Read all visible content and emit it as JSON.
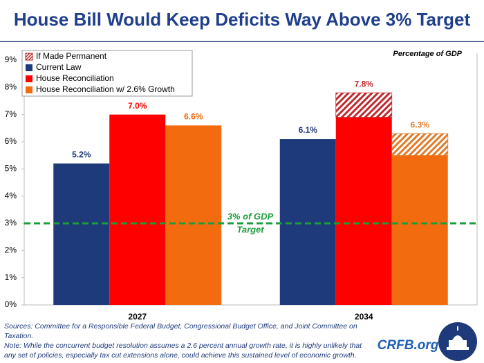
{
  "chart_data": {
    "type": "bar",
    "title": "House Bill Would Keep Deficits Way Above 3% Target",
    "unit_note": "Percentage of GDP",
    "categories": [
      "2027",
      "2034"
    ],
    "permanent_name": "If Made Permanent",
    "series": [
      {
        "name": "Current Law",
        "color": "#1f3a7a",
        "values": [
          5.2,
          6.1
        ],
        "value_labels": [
          "5.2%",
          "6.1%"
        ]
      },
      {
        "name": "House Reconciliation",
        "color": "#ff0000",
        "values": [
          7.0,
          6.9
        ],
        "value_labels": [
          "7.0%",
          null
        ],
        "permanent": [
          null,
          7.8
        ],
        "permanent_labels": [
          null,
          "7.8%"
        ],
        "permanent_color": "#c0282d"
      },
      {
        "name": "House Reconciliation w/ 2.6% Growth",
        "color": "#f26b0f",
        "values": [
          6.6,
          5.5
        ],
        "value_labels": [
          "6.6%",
          null
        ],
        "permanent": [
          null,
          6.3
        ],
        "permanent_labels": [
          null,
          "6.3%"
        ],
        "permanent_color": "#e07b2a"
      }
    ],
    "ylim": [
      0,
      9
    ],
    "yticks": [
      {
        "value": 0,
        "label": "0%"
      },
      {
        "value": 1,
        "label": "1%"
      },
      {
        "value": 2,
        "label": "2%"
      },
      {
        "value": 3,
        "label": "3%"
      },
      {
        "value": 4,
        "label": "4%"
      },
      {
        "value": 5,
        "label": "5%"
      },
      {
        "value": 6,
        "label": "6%"
      },
      {
        "value": 7,
        "label": "7%"
      },
      {
        "value": 8,
        "label": "8%"
      },
      {
        "value": 9,
        "label": "9%"
      }
    ],
    "grid": false,
    "legend_position": "top-left",
    "target": {
      "value": 3,
      "label_lines": [
        "3% of GDP",
        "Target"
      ],
      "color": "#1a9e3a"
    },
    "sources": "Sources: Committee for a Responsible Federal Budget, Congressional Budget Office, and Joint Committee on Taxation.",
    "note": "Note: While the concurrent budget resolution assumes a 2.6 percent annual growth rate, it is highly unlikely that any set of policies, especially tax cut extensions alone, could achieve this sustained level of economic growth.",
    "brand": "CRFB.org"
  }
}
